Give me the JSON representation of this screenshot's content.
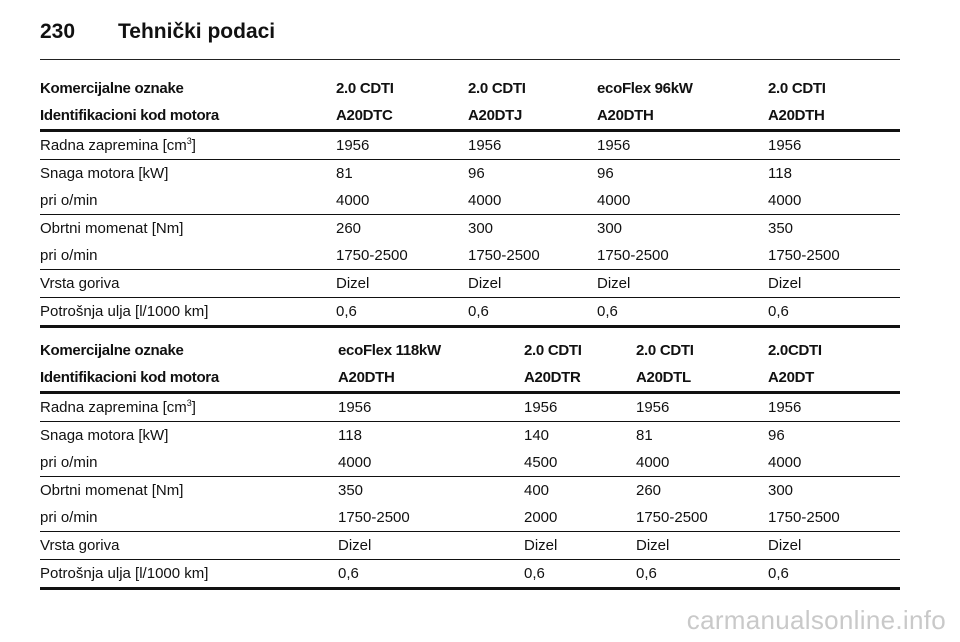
{
  "header": {
    "page_number": "230",
    "title": "Tehnički podaci"
  },
  "tables": [
    {
      "columns": [
        [
          "Komercijalne oznake",
          "2.0 CDTI",
          "2.0 CDTI",
          "ecoFlex 96kW",
          "2.0 CDTI"
        ],
        [
          "Identifikacioni kod motora",
          "A20DTC",
          "A20DTJ",
          "A20DTH",
          "A20DTH"
        ]
      ],
      "rows": [
        [
          "Radna zapremina [cm",
          "3",
          "]",
          "1956",
          "1956",
          "1956",
          "1956"
        ],
        [
          "Snaga motora [kW]",
          "81",
          "96",
          "96",
          "118"
        ],
        [
          "pri o/min",
          "4000",
          "4000",
          "4000",
          "4000"
        ],
        [
          "Obrtni momenat [Nm]",
          "260",
          "300",
          "300",
          "350"
        ],
        [
          "pri o/min",
          "1750-2500",
          "1750-2500",
          "1750-2500",
          "1750-2500"
        ],
        [
          "Vrsta goriva",
          "Dizel",
          "Dizel",
          "Dizel",
          "Dizel"
        ],
        [
          "Potrošnja ulja [l/1000 km]",
          "0,6",
          "0,6",
          "0,6",
          "0,6"
        ]
      ]
    },
    {
      "columns": [
        [
          "Komercijalne oznake",
          "ecoFlex 118kW",
          "2.0 CDTI",
          "2.0 CDTI",
          "2.0CDTI"
        ],
        [
          "Identifikacioni kod motora",
          "A20DTH",
          "A20DTR",
          "A20DTL",
          "A20DT"
        ]
      ],
      "rows": [
        [
          "Radna zapremina [cm",
          "3",
          "]",
          "1956",
          "1956",
          "1956",
          "1956"
        ],
        [
          "Snaga motora [kW]",
          "118",
          "140",
          "81",
          "96"
        ],
        [
          "pri o/min",
          "4000",
          "4500",
          "4000",
          "4000"
        ],
        [
          "Obrtni momenat [Nm]",
          "350",
          "400",
          "260",
          "300"
        ],
        [
          "pri o/min",
          "1750-2500",
          "2000",
          "1750-2500",
          "1750-2500"
        ],
        [
          "Vrsta goriva",
          "Dizel",
          "Dizel",
          "Dizel",
          "Dizel"
        ],
        [
          "Potrošnja ulja [l/1000 km]",
          "0,6",
          "0,6",
          "0,6",
          "0,6"
        ]
      ]
    }
  ],
  "watermark": "carmanualsonline.info"
}
